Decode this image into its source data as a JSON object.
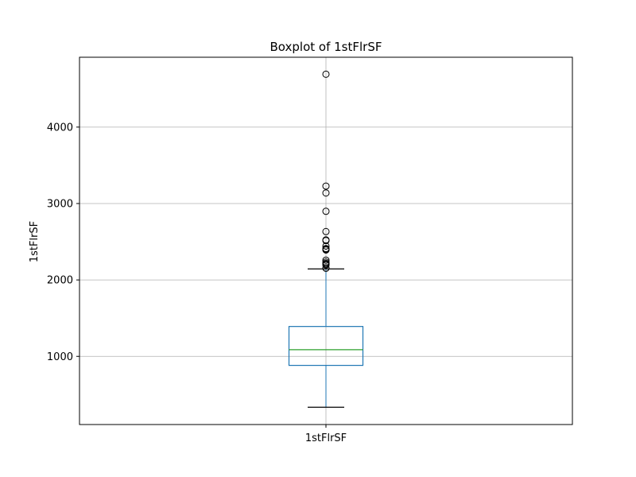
{
  "chart_data": {
    "type": "box",
    "title": "Boxplot of 1stFlrSF",
    "xlabel": "",
    "ylabel": "1stFlrSF",
    "categories": [
      "1stFlrSF"
    ],
    "ylim": [
      108,
      4914
    ],
    "yticks": [
      1000,
      2000,
      3000,
      4000
    ],
    "ytick_labels": [
      "1000",
      "2000",
      "3000",
      "4000"
    ],
    "grid": true,
    "box": {
      "whisker_low": 334,
      "q1": 882,
      "median": 1087,
      "q3": 1391,
      "whisker_high": 2144
    },
    "outliers": [
      4692,
      3228,
      3138,
      2898,
      2633,
      2524,
      2515,
      2444,
      2411,
      2402,
      2392,
      2259,
      2234,
      2217,
      2207,
      2196,
      2156,
      2153
    ],
    "colors": {
      "box": "#1f77b4",
      "median": "#2ca02c",
      "whisker": "#1f77b4",
      "cap": "#000000",
      "grid": "#b0b0b0",
      "outlier_edge": "#000000"
    }
  }
}
